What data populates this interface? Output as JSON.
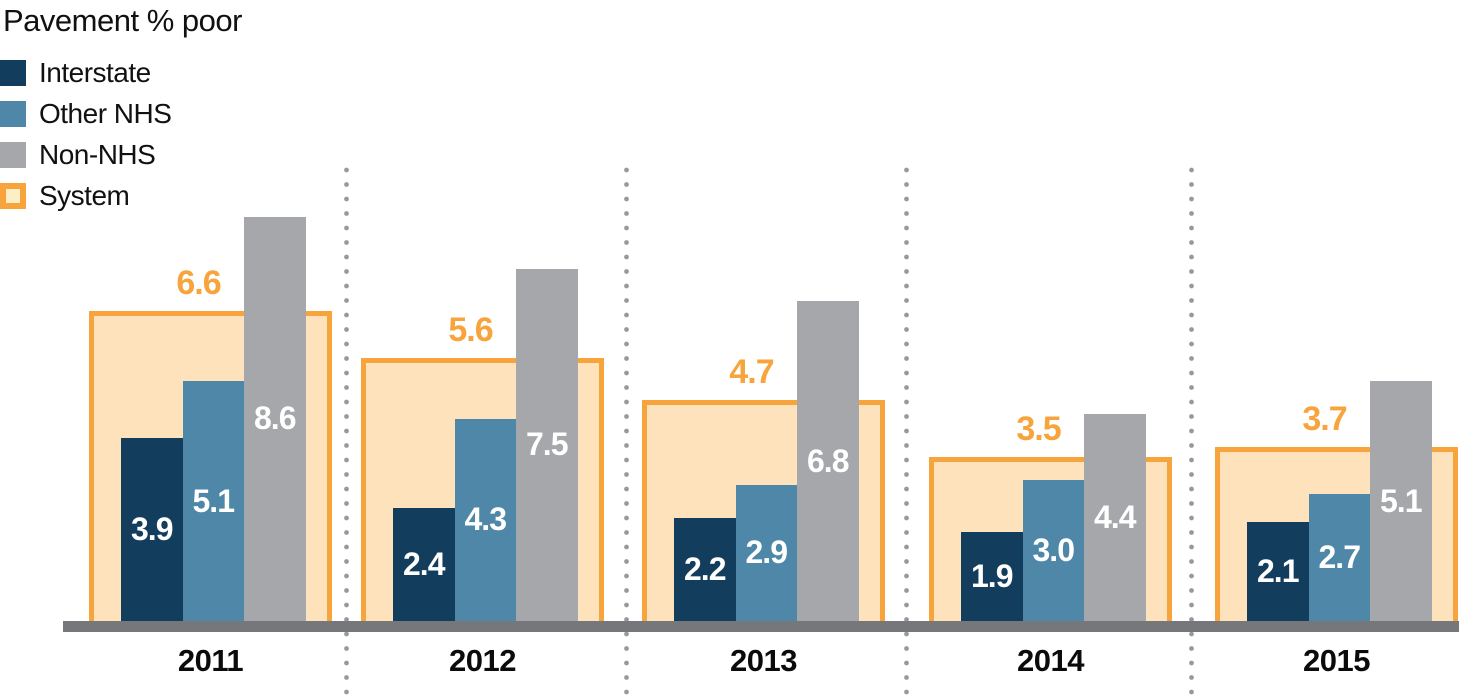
{
  "chart_data": {
    "type": "bar",
    "title": "Pavement % poor",
    "categories": [
      "2011",
      "2012",
      "2013",
      "2014",
      "2015"
    ],
    "series": [
      {
        "name": "Interstate",
        "color": "#133d5c",
        "values": [
          3.9,
          2.4,
          2.2,
          1.9,
          2.1
        ]
      },
      {
        "name": "Other NHS",
        "color": "#4e87a8",
        "values": [
          5.1,
          4.3,
          2.9,
          3.0,
          2.7
        ]
      },
      {
        "name": "Non-NHS",
        "color": "#a5a7aa",
        "values": [
          8.6,
          7.5,
          6.8,
          4.4,
          5.1
        ]
      },
      {
        "name": "System",
        "color": "#f7a43c",
        "fill": "#fde2bc",
        "legend_fill": "#fcefc5",
        "values": [
          6.6,
          5.6,
          4.7,
          3.5,
          3.7
        ]
      }
    ],
    "value_labels": {
      "bar_label_color": "#ffffff",
      "system_label_color": "#f7a43c"
    },
    "legend_position": "top-left",
    "grid": false,
    "axis": {
      "baseline_color": "#76777a",
      "separator_dot_color": "#97989a",
      "y_axis_shown": false,
      "ylim": [
        0,
        9.5
      ]
    }
  }
}
